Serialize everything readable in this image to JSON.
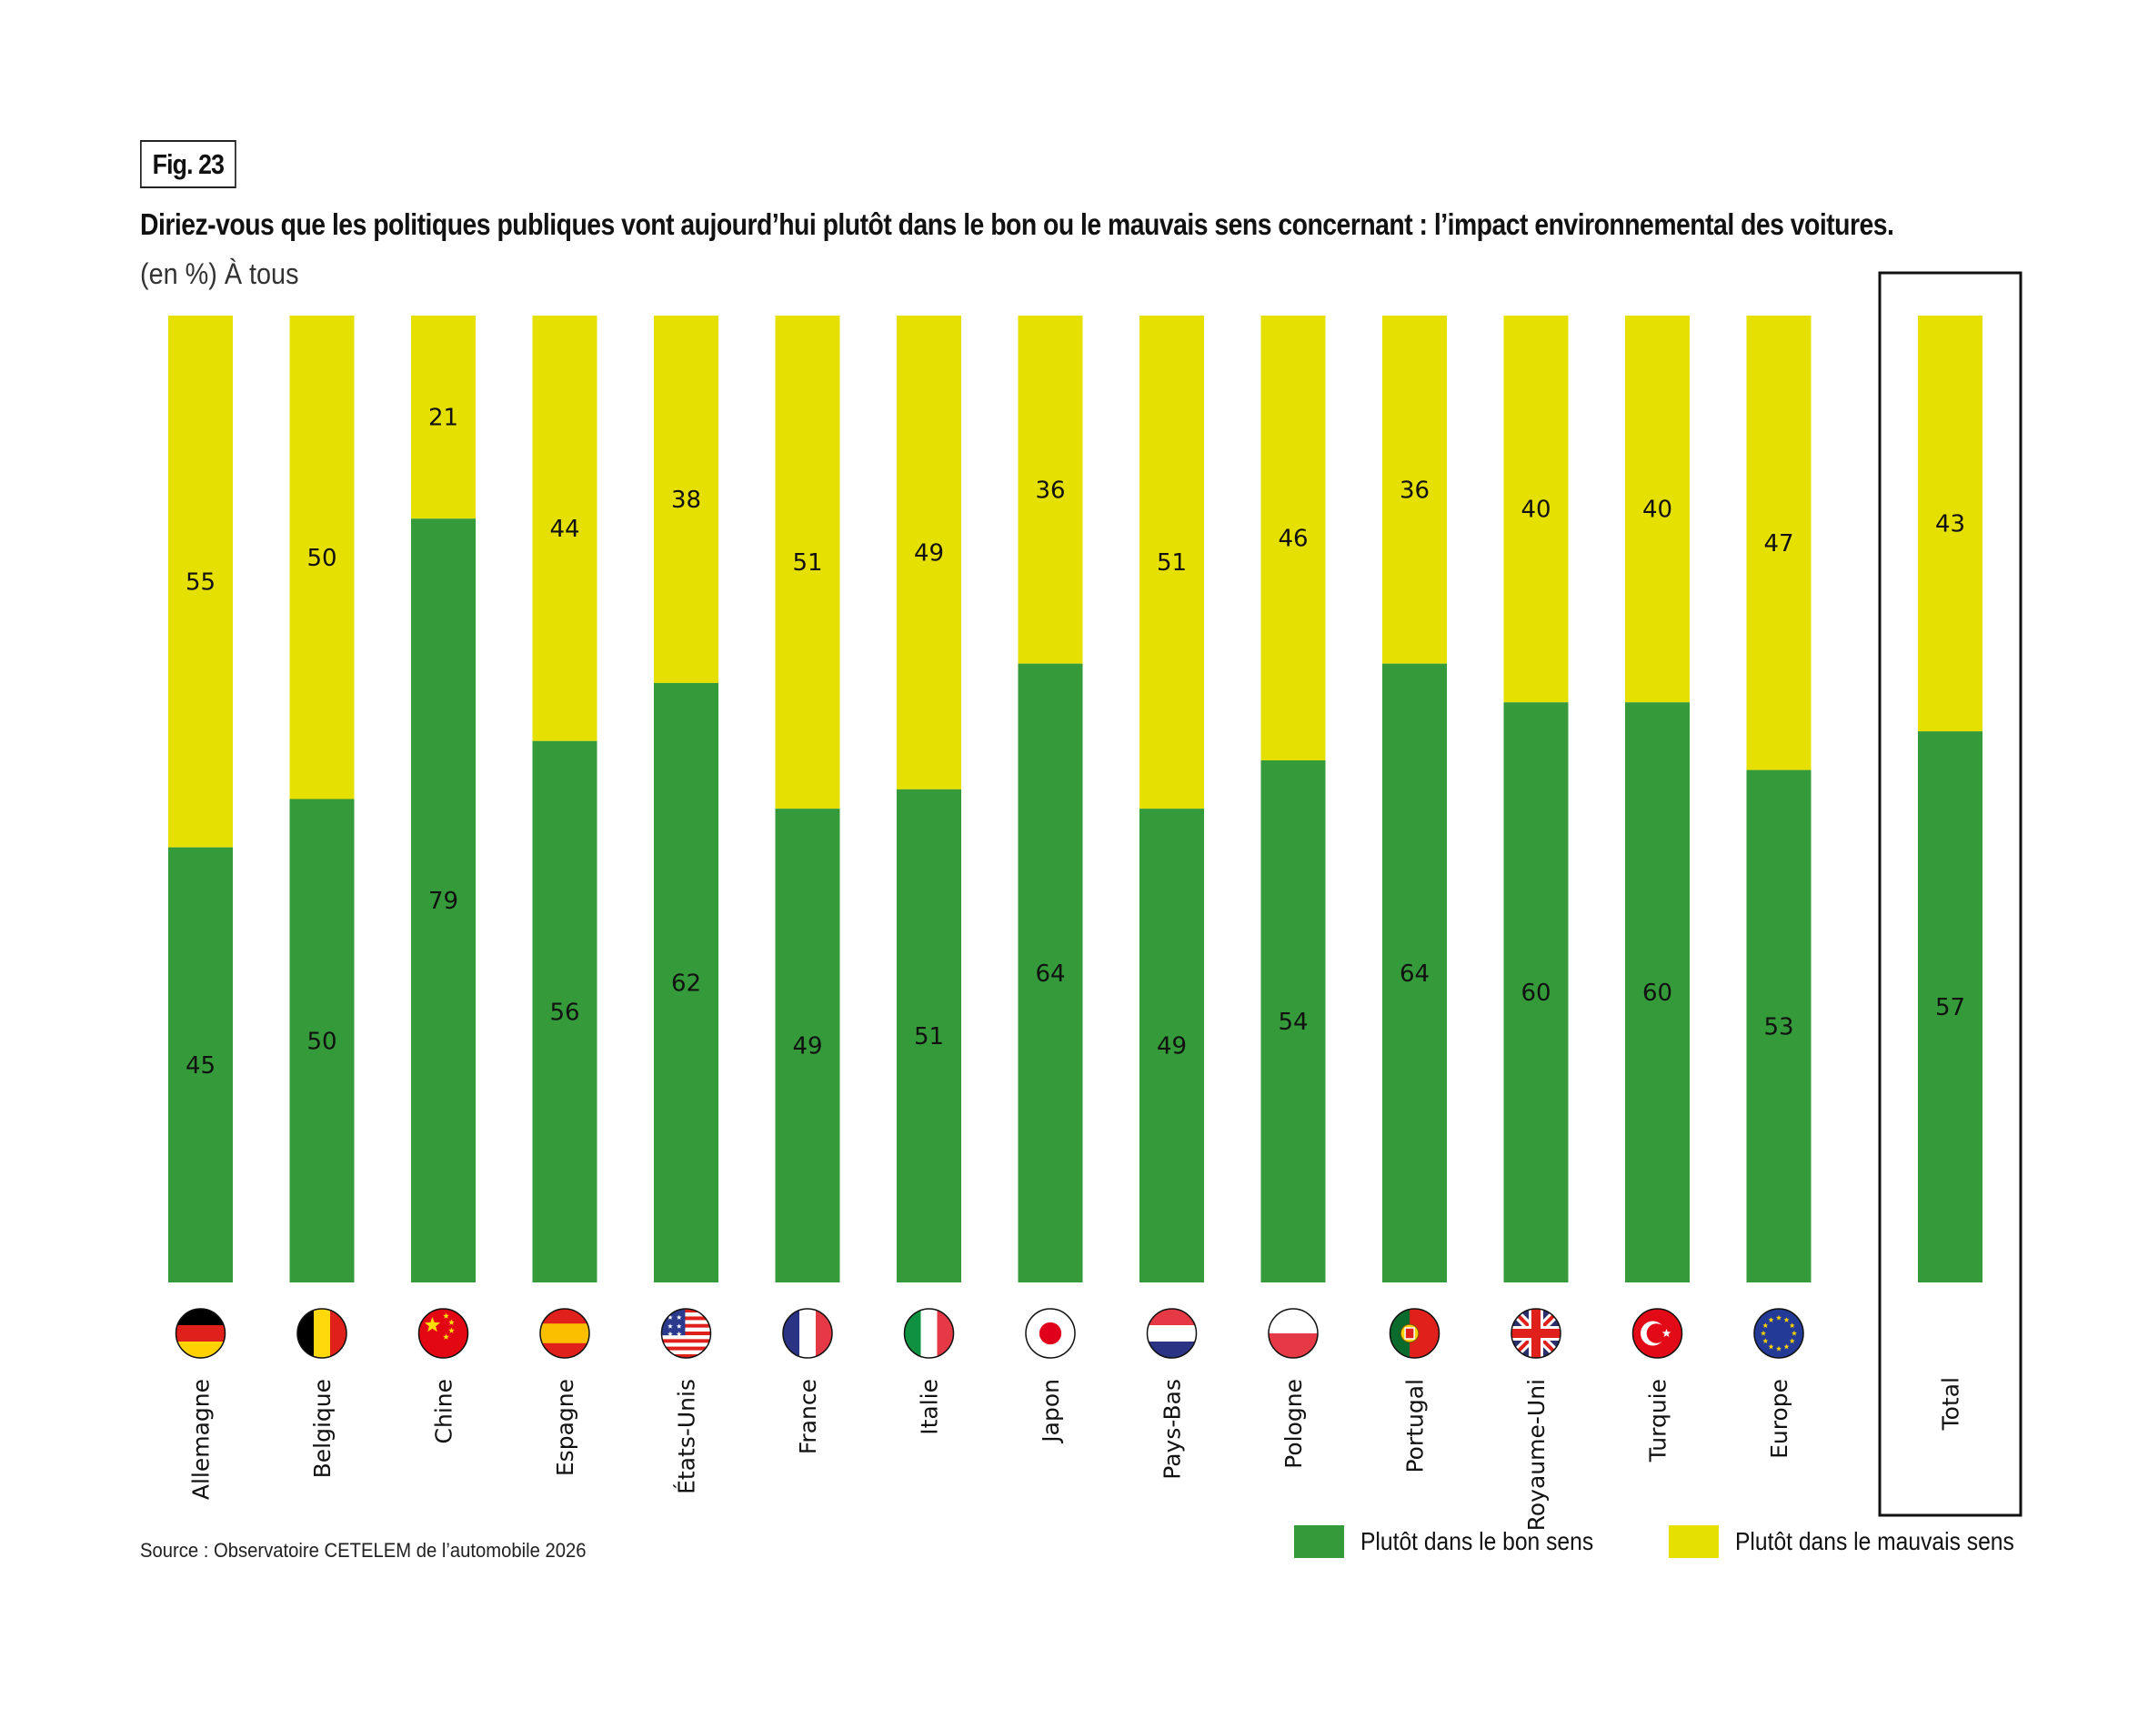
{
  "figure": {
    "label": "Fig. 23",
    "title": "Diriez-vous que les politiques publiques vont aujourd’hui plutôt dans le bon ou le mauvais sens concernant : l’impact environnemental des voitures.",
    "subtitle": "(en %) À tous",
    "source": "Source : Observatoire CETELEM de l’automobile 2026"
  },
  "colors": {
    "bon_sens": "#359a3a",
    "mauvais_sens": "#e6e000"
  },
  "chart_data": {
    "type": "bar",
    "stacked": true,
    "orientation": "vertical",
    "title": "Diriez-vous que les politiques publiques vont aujourd’hui plutôt dans le bon ou le mauvais sens concernant : l’impact environnemental des voitures.",
    "subtitle": "(en %) À tous",
    "xlabel": "",
    "ylabel": "",
    "ylim": [
      0,
      100
    ],
    "grid": false,
    "legend_position": "bottom-right",
    "categories": [
      "Allemagne",
      "Belgique",
      "Chine",
      "Espagne",
      "États-Unis",
      "France",
      "Italie",
      "Japon",
      "Pays-Bas",
      "Pologne",
      "Portugal",
      "Royaume-Uni",
      "Turquie",
      "Europe",
      "Total"
    ],
    "flags": [
      "flag-germany",
      "flag-belgium",
      "flag-china",
      "flag-spain",
      "flag-usa",
      "flag-france",
      "flag-italy",
      "flag-japan",
      "flag-netherlands",
      "flag-poland",
      "flag-portugal",
      "flag-uk",
      "flag-turkey",
      "flag-eu",
      null
    ],
    "highlighted_category": "Total",
    "series": [
      {
        "name": "Plutôt dans le bon sens",
        "color": "#359a3a",
        "values": [
          45,
          50,
          79,
          56,
          62,
          49,
          51,
          64,
          49,
          54,
          64,
          60,
          60,
          53,
          57
        ]
      },
      {
        "name": "Plutôt dans le mauvais sens",
        "color": "#e6e000",
        "values": [
          55,
          50,
          21,
          44,
          38,
          51,
          49,
          36,
          51,
          46,
          36,
          40,
          40,
          47,
          43
        ]
      }
    ]
  },
  "legend": {
    "items": [
      {
        "label": "Plutôt dans le bon sens",
        "color": "#359a3a"
      },
      {
        "label": "Plutôt dans le mauvais sens",
        "color": "#e6e000"
      }
    ]
  }
}
